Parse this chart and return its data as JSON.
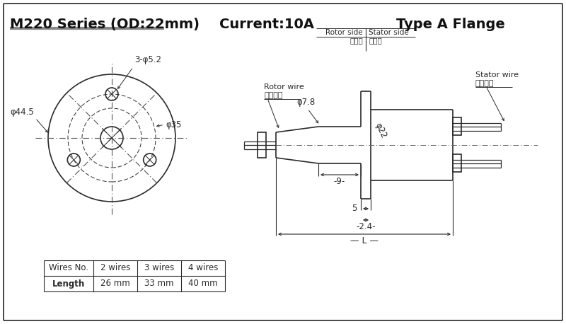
{
  "title_left": "M220 Series (OD:22mm)",
  "title_mid": "Current:10A",
  "title_right": "Type A Flange",
  "bg_color": "#ffffff",
  "line_color": "#2a2a2a",
  "dim_color": "#2a2a2a",
  "table_headers": [
    "Wires No.",
    "2 wires",
    "3 wires",
    "4 wires"
  ],
  "table_row": [
    "Length",
    "26 mm",
    "33 mm",
    "40 mm"
  ],
  "rotor_side_en": "Rotor side",
  "rotor_side_cn": "转子边",
  "stator_side_en": "Stator side",
  "stator_side_cn": "定子边",
  "rotor_wire_en": "Rotor wire",
  "rotor_wire_cn": "转子出线",
  "stator_wire_en": "Stator wire",
  "stator_wire_cn": "定子出线",
  "dim_od44": "φ44.5",
  "dim_od35": "φ35",
  "dim_3hole": "3-φ5.2",
  "dim_phi78": "φ7.8",
  "dim_phi22": "φ22",
  "underline_color": "#888888"
}
